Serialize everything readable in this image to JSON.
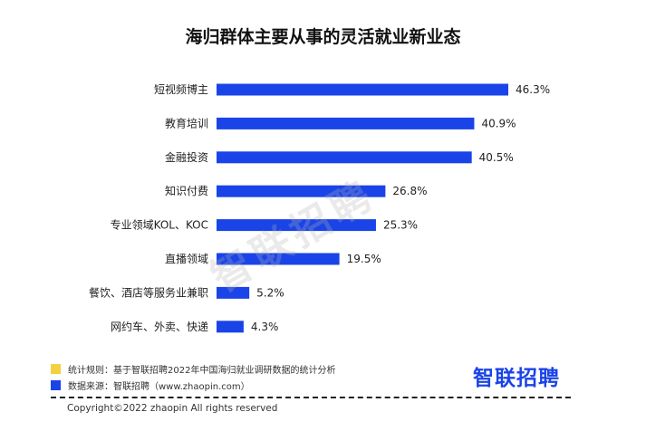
{
  "title": "海归群体主要从事的灵活就业新业态",
  "watermark": "智联招聘",
  "colors": {
    "bar": "#1a44e8",
    "legend_rule": "#f5d142",
    "legend_source": "#1a44e8",
    "logo": "#1a44e8"
  },
  "chart_data": {
    "type": "bar",
    "orientation": "horizontal",
    "categories": [
      "短视频博主",
      "教育培训",
      "金融投资",
      "知识付费",
      "专业领域KOL、KOC",
      "直播领域",
      "餐饮、酒店等服务业兼职",
      "网约车、外卖、快递"
    ],
    "values": [
      46.3,
      40.9,
      40.5,
      26.8,
      25.3,
      19.5,
      5.2,
      4.3
    ],
    "labels": [
      "46.3%",
      "40.9%",
      "40.5%",
      "26.8%",
      "25.3%",
      "19.5%",
      "5.2%",
      "4.3%"
    ],
    "unit": "%",
    "xlim": [
      0,
      46.3
    ],
    "grid": false,
    "legend": "none"
  },
  "legend": {
    "rule": "统计规则：基于智联招聘2022年中国海归就业调研数据的统计分析",
    "source": "数据来源：智联招聘（www.zhaopin.com）"
  },
  "logo": "智联招聘",
  "copyright": "Copyright©2022 zhaopin All rights reserved"
}
